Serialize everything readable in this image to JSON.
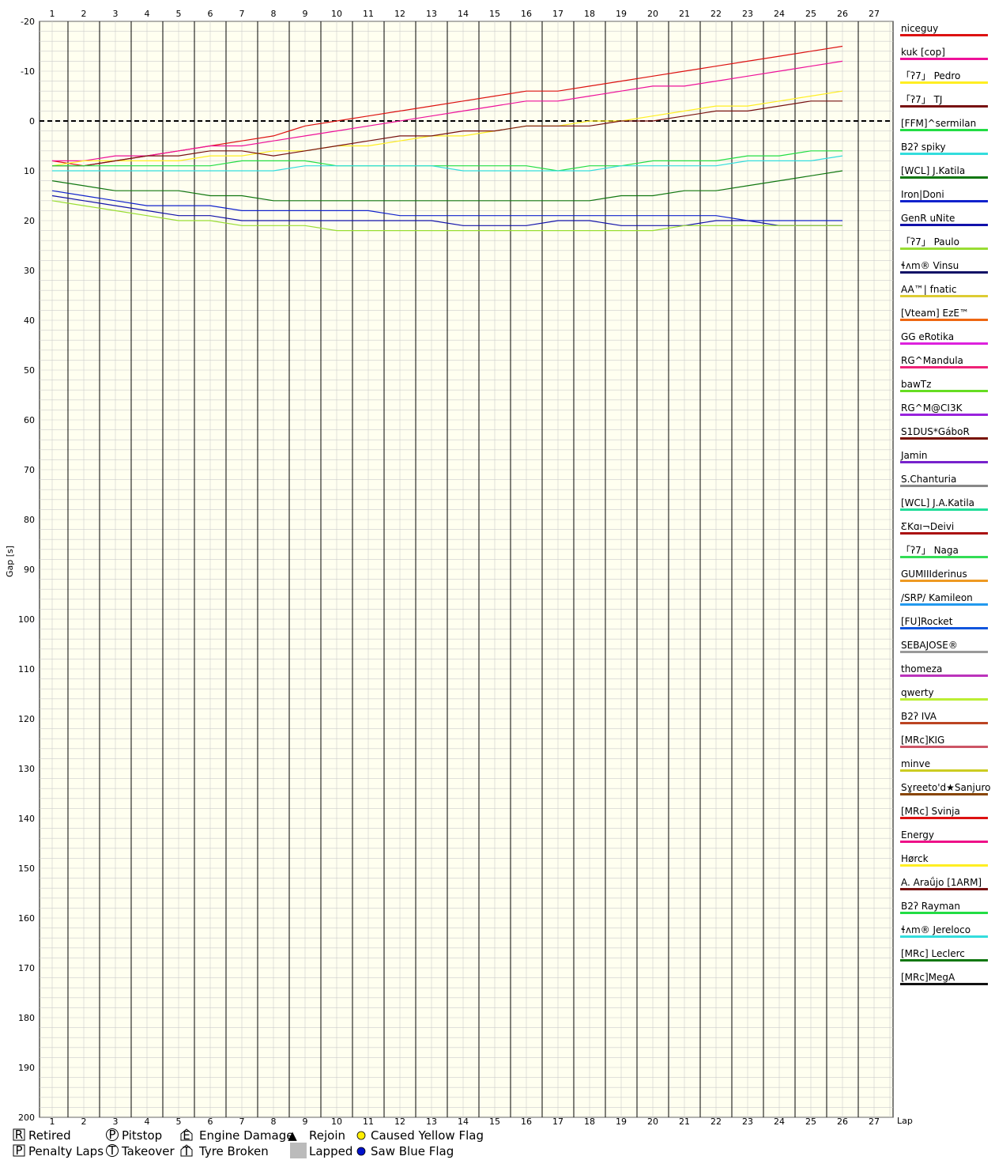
{
  "chart_data": {
    "type": "line",
    "title": "",
    "xlabel": "Lap",
    "ylabel": "Gap [s]",
    "x_ticks": [
      1,
      2,
      3,
      4,
      5,
      6,
      7,
      8,
      9,
      10,
      11,
      12,
      13,
      14,
      15,
      16,
      17,
      18,
      19,
      20,
      21,
      22,
      23,
      24,
      25,
      26,
      27
    ],
    "y_ticks": [
      -20,
      -10,
      0,
      10,
      20,
      30,
      40,
      50,
      60,
      70,
      80,
      90,
      100,
      110,
      120,
      130,
      140,
      150,
      160,
      170,
      180,
      190,
      200
    ],
    "xlim": [
      0.6,
      27.6
    ],
    "ylim": [
      -20,
      200
    ],
    "y_inverted": true,
    "grid": true,
    "reference_line": 0,
    "legend_position": "right",
    "series": [
      {
        "name": "niceguy",
        "color": "#dd1111",
        "values": [
          8,
          9,
          8,
          7,
          6,
          5,
          4,
          3,
          1,
          0,
          -1,
          -2,
          -3,
          -4,
          -5,
          -6,
          -6,
          -7,
          -8,
          -9,
          -10,
          -11,
          -12,
          -13,
          -14,
          -15
        ]
      },
      {
        "name": "kuk [cop]",
        "color": "#ee1199",
        "values": [
          8,
          8,
          7,
          7,
          6,
          5,
          5,
          4,
          3,
          2,
          1,
          0,
          -1,
          -2,
          -3,
          -4,
          -4,
          -5,
          -6,
          -7,
          -7,
          -8,
          -9,
          -10,
          -11,
          -12
        ]
      },
      {
        "name": "「ʔ7」 Pedro",
        "color": "#ffee22",
        "values": [
          9,
          8,
          8,
          8,
          8,
          7,
          7,
          6,
          6,
          5,
          5,
          4,
          3,
          3,
          2,
          1,
          1,
          0,
          0,
          -1,
          -2,
          -3,
          -3,
          -4,
          -5,
          -6
        ]
      },
      {
        "name": "「ʔ7」 TJ",
        "color": "#771111",
        "values": [
          9,
          9,
          8,
          7,
          7,
          6,
          6,
          7,
          6,
          5,
          4,
          3,
          3,
          2,
          2,
          1,
          1,
          1,
          0,
          0,
          -1,
          -2,
          -2,
          -3,
          -4,
          -4
        ]
      },
      {
        "name": "[FFM]^sermilan",
        "color": "#22dd44",
        "values": [
          9,
          9,
          9,
          9,
          9,
          9,
          8,
          8,
          8,
          9,
          9,
          9,
          9,
          9,
          9,
          9,
          10,
          9,
          9,
          8,
          8,
          8,
          7,
          7,
          6,
          6
        ]
      },
      {
        "name": "B2ʔ spiky",
        "color": "#33dddd",
        "values": [
          10,
          10,
          10,
          10,
          10,
          10,
          10,
          10,
          9,
          9,
          9,
          9,
          9,
          10,
          10,
          10,
          10,
          10,
          9,
          9,
          9,
          9,
          8,
          8,
          8,
          7
        ]
      },
      {
        "name": "[WCL] J.Katila",
        "color": "#117711",
        "values": [
          12,
          13,
          14,
          14,
          14,
          15,
          15,
          16,
          16,
          16,
          16,
          16,
          16,
          16,
          16,
          16,
          16,
          16,
          15,
          15,
          14,
          14,
          13,
          12,
          11,
          10
        ]
      },
      {
        "name": "Iron|Doni",
        "color": "#1122cc",
        "values": [
          14,
          15,
          16,
          17,
          17,
          17,
          18,
          18,
          18,
          18,
          18,
          19,
          19,
          19,
          19,
          19,
          19,
          19,
          19,
          19,
          19,
          19,
          20,
          20,
          20,
          20
        ]
      },
      {
        "name": "GenR uNite",
        "color": "#1111aa",
        "values": [
          15,
          16,
          17,
          18,
          19,
          19,
          20,
          20,
          20,
          20,
          20,
          20,
          20,
          21,
          21,
          21,
          20,
          20,
          21,
          21,
          21,
          20,
          20,
          21,
          21,
          21
        ]
      },
      {
        "name": "「ʔ7」 Paulo",
        "color": "#99dd33",
        "values": [
          16,
          17,
          18,
          19,
          20,
          20,
          21,
          21,
          21,
          22,
          22,
          22,
          22,
          22,
          22,
          22,
          22,
          22,
          22,
          22,
          21,
          21,
          21,
          21,
          21,
          21
        ]
      }
    ],
    "markers": [
      {
        "code": "P",
        "meaning": "Pitstop"
      },
      {
        "code": "R",
        "meaning": "Retired"
      },
      {
        "code": "E",
        "meaning": "Engine Damage"
      }
    ]
  },
  "legend": [
    {
      "name": "niceguy",
      "color": "#dd1111"
    },
    {
      "name": "kuk [cop]",
      "color": "#ee1199"
    },
    {
      "name": "「ʔ7」 Pedro",
      "color": "#ffee22"
    },
    {
      "name": "「ʔ7」 TJ",
      "color": "#771111"
    },
    {
      "name": "[FFM]^sermilan",
      "color": "#22dd44"
    },
    {
      "name": "B2ʔ spiky",
      "color": "#33dddd"
    },
    {
      "name": "[WCL] J.Katila",
      "color": "#117711"
    },
    {
      "name": "Iron|Doni",
      "color": "#1122cc"
    },
    {
      "name": "GenR uNite",
      "color": "#1111aa"
    },
    {
      "name": "「ʔ7」 Paulo",
      "color": "#99dd33"
    },
    {
      "name": "ɬʌm® Vinsu",
      "color": "#111166"
    },
    {
      "name": "AA™| fnatic",
      "color": "#ddcc33"
    },
    {
      "name": "[Vteam] EzE™",
      "color": "#ee6611"
    },
    {
      "name": "GG eRotika",
      "color": "#dd22dd"
    },
    {
      "name": "RG^Mandula",
      "color": "#ee2277"
    },
    {
      "name": "bawTz",
      "color": "#66dd22"
    },
    {
      "name": "RG^M@CI3K",
      "color": "#9922dd"
    },
    {
      "name": "S1DUS*GáboR",
      "color": "#771100"
    },
    {
      "name": "Jamin",
      "color": "#7722cc"
    },
    {
      "name": "S.Chanturia",
      "color": "#888888"
    },
    {
      "name": "[WCL] J.A.Katila",
      "color": "#22dd99"
    },
    {
      "name": "ƸKɑı¬Deivi",
      "color": "#aa1111"
    },
    {
      "name": "「ʔ7」 Naga",
      "color": "#33dd55"
    },
    {
      "name": "GUMIIIderinus",
      "color": "#ee9922"
    },
    {
      "name": "/SRP/ Kamileon",
      "color": "#2299ee"
    },
    {
      "name": "[FU]Rocket",
      "color": "#1155dd"
    },
    {
      "name": "SEBAJOSE®",
      "color": "#999999"
    },
    {
      "name": "thomeza",
      "color": "#bb33bb"
    },
    {
      "name": "qwerty",
      "color": "#bbee33"
    },
    {
      "name": "B2ʔ IVA",
      "color": "#bb4422"
    },
    {
      "name": "[MRc]KIG",
      "color": "#cc5566"
    },
    {
      "name": "minve",
      "color": "#cccc22"
    },
    {
      "name": "Sɣreeto'd★Sanjuro",
      "color": "#884400"
    },
    {
      "name": "[MRc] Svinja",
      "color": "#dd1111"
    },
    {
      "name": "Energy",
      "color": "#ee1188"
    },
    {
      "name": "Hørck",
      "color": "#ffee22"
    },
    {
      "name": "A. Araǘjo [1ARM]",
      "color": "#771111"
    },
    {
      "name": "B2ʔ Rayman",
      "color": "#22dd44"
    },
    {
      "name": "ɬʌm® Jereloco",
      "color": "#33dddd"
    },
    {
      "name": "[MRc] Leclerc",
      "color": "#117711"
    },
    {
      "name": "[MRc]MegA",
      "color": "#111111"
    }
  ],
  "key": {
    "retired": {
      "icon": "R",
      "label": "Retired"
    },
    "penalty": {
      "icon": "P",
      "label": "Penalty Laps"
    },
    "pitstop": {
      "icon": "P",
      "label": "Pitstop"
    },
    "takeover": {
      "icon": "T",
      "label": "Takeover"
    },
    "engine": {
      "icon": "E",
      "label": "Engine Damage"
    },
    "tyre": {
      "icon": "T",
      "label": "Tyre Broken"
    },
    "rejoin": {
      "icon": "▲",
      "label": "Rejoin"
    },
    "lapped": {
      "label": "Lapped"
    },
    "yellow": {
      "label": "Caused Yellow Flag",
      "color": "#ffee00"
    },
    "blue": {
      "label": "Saw Blue Flag",
      "color": "#0011cc"
    }
  },
  "style": {
    "plot_bg": "#fffff0",
    "minor_grid": "#cccccc",
    "major_grid": "#000000",
    "lapped_color": "#bbbbbb"
  }
}
